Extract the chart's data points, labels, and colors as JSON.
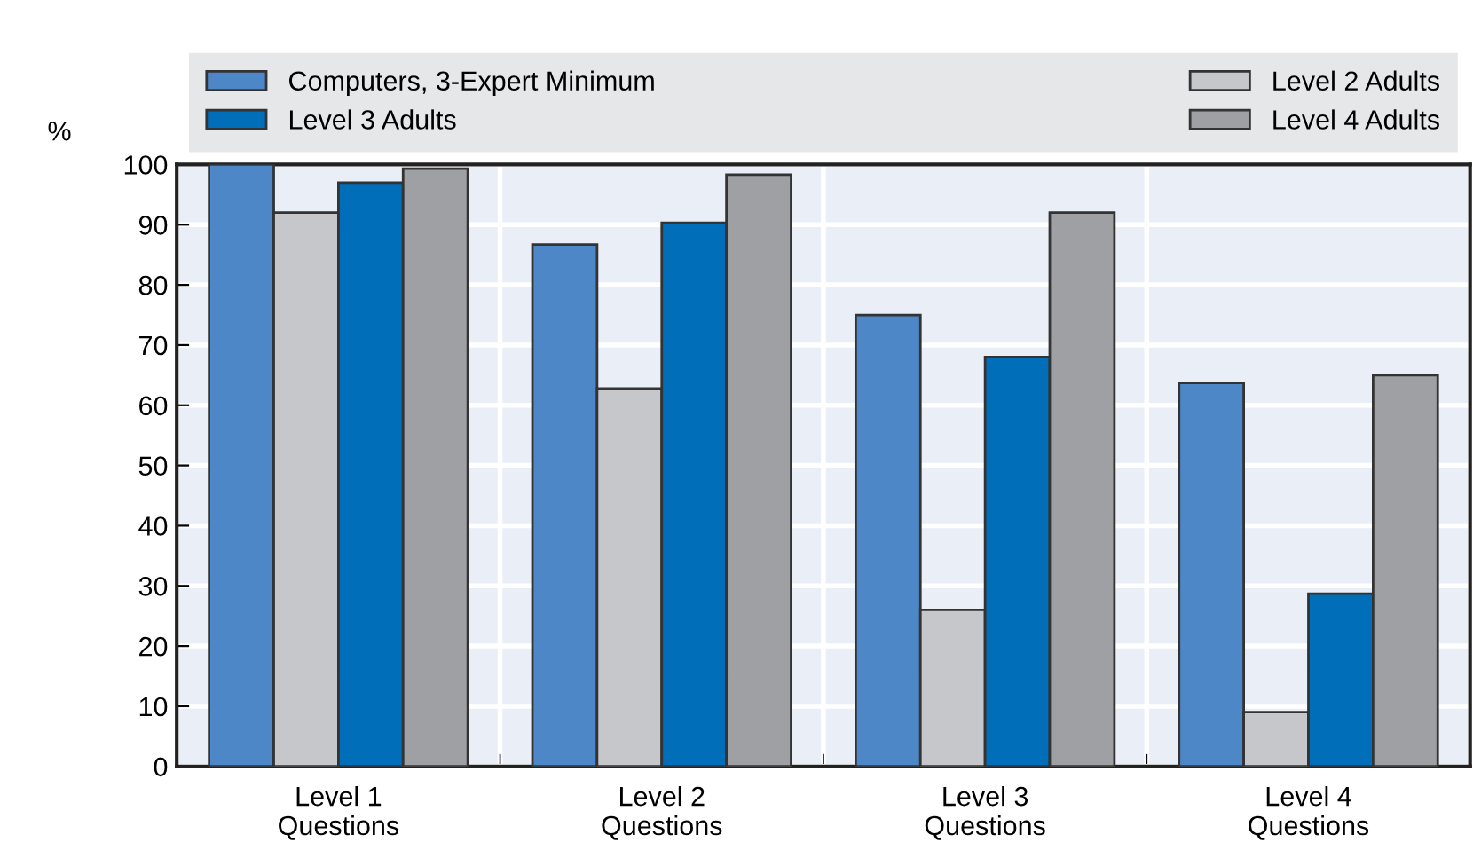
{
  "chart_data": {
    "type": "bar",
    "ylabel": "%",
    "categories": [
      "Level 1\nQuestions",
      "Level 2\nQuestions",
      "Level 3\nQuestions",
      "Level 4\nQuestions"
    ],
    "series": [
      {
        "name": "Computers, 3-Expert Minimum",
        "color": "#4d87c7",
        "values": [
          100,
          86.7,
          75,
          63.7
        ]
      },
      {
        "name": "Level 2 Adults",
        "color": "#c6c7ca",
        "values": [
          92,
          62.8,
          26,
          9
        ]
      },
      {
        "name": "Level 3 Adults",
        "color": "#006eb8",
        "values": [
          97,
          90.3,
          68,
          28.7
        ]
      },
      {
        "name": "Level 4 Adults",
        "color": "#9fa0a4",
        "values": [
          99.3,
          98.3,
          92,
          65
        ]
      }
    ],
    "ylim": [
      0,
      100
    ],
    "yticks": [
      0,
      10,
      20,
      30,
      40,
      50,
      60,
      70,
      80,
      90,
      100
    ],
    "grid": true,
    "legend": "top"
  }
}
